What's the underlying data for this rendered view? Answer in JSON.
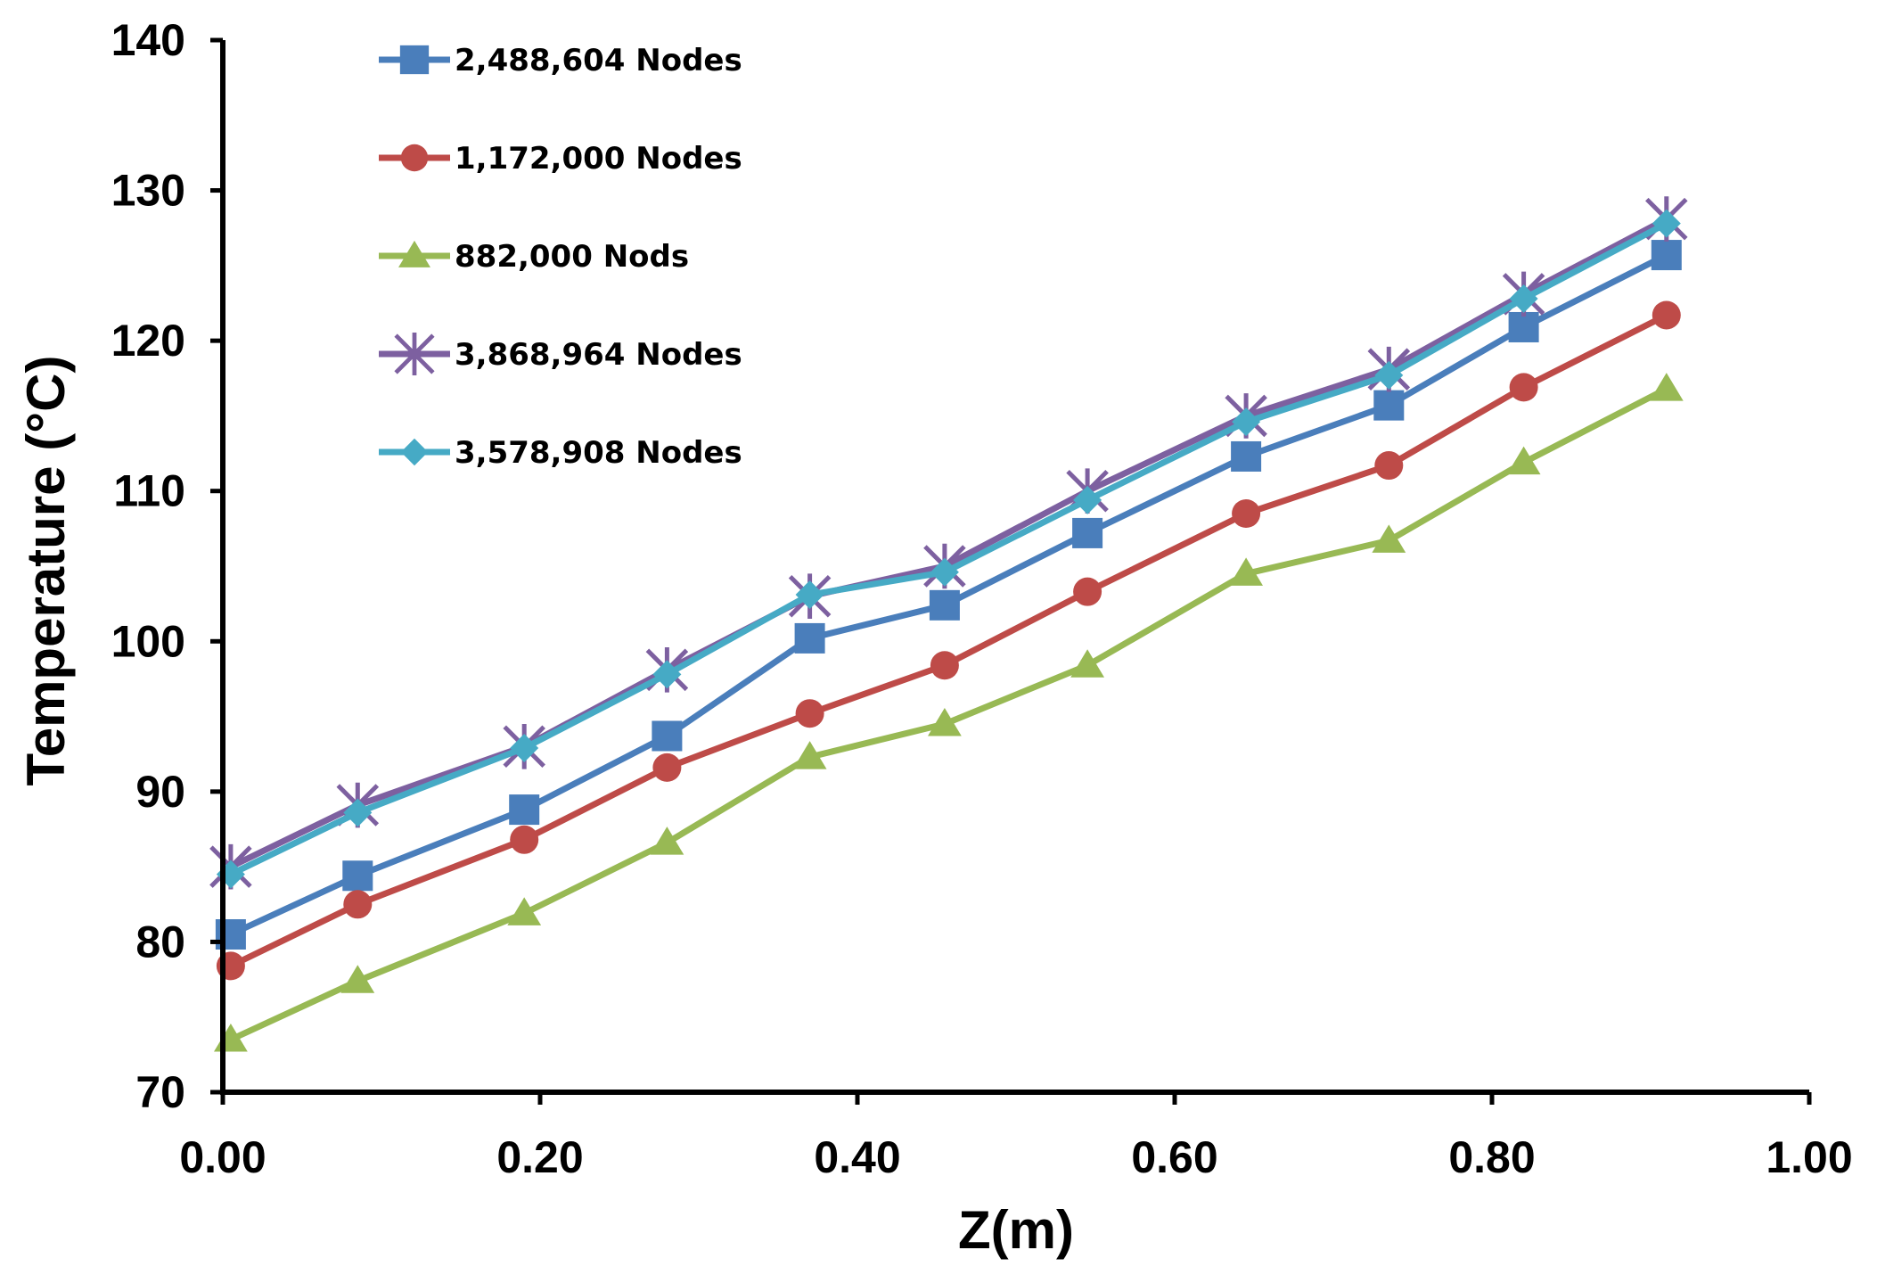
{
  "chart_data": {
    "type": "line",
    "title": "",
    "xlabel": "Z(m)",
    "ylabel": "Temperature (°C)",
    "xlim": [
      0,
      1
    ],
    "ylim": [
      70,
      140
    ],
    "xticks": [
      "0.00",
      "0.20",
      "0.40",
      "0.60",
      "0.80",
      "1.00"
    ],
    "yticks": [
      "70",
      "80",
      "90",
      "100",
      "110",
      "120",
      "130",
      "140"
    ],
    "grid": false,
    "legend_position": "top-left",
    "x": [
      0.005,
      0.085,
      0.19,
      0.28,
      0.37,
      0.455,
      0.545,
      0.645,
      0.735,
      0.82,
      0.91
    ],
    "series": [
      {
        "name": "2,488,604 Nodes",
        "marker": "square",
        "color": "#4A7EBB",
        "values": [
          80.5,
          84.4,
          88.8,
          93.7,
          100.2,
          102.4,
          107.2,
          112.3,
          115.7,
          120.9,
          125.7
        ]
      },
      {
        "name": "1,172,000 Nodes",
        "marker": "circle",
        "color": "#BE4B48",
        "values": [
          78.4,
          82.5,
          86.8,
          91.6,
          95.2,
          98.4,
          103.3,
          108.5,
          111.7,
          116.9,
          121.7
        ]
      },
      {
        "name": "882,000 Nods",
        "marker": "triangle",
        "color": "#98B954",
        "values": [
          73.5,
          77.4,
          81.9,
          86.6,
          92.3,
          94.5,
          98.4,
          104.5,
          106.7,
          111.9,
          116.8
        ]
      },
      {
        "name": "3,868,964 Nodes",
        "marker": "star",
        "color": "#7D60A0",
        "values": [
          85.0,
          89.1,
          93.0,
          98.1,
          103.0,
          105.0,
          110.0,
          115.0,
          118.1,
          123.1,
          128.1
        ]
      },
      {
        "name": "3,578,908 Nodes",
        "marker": "diamond",
        "color": "#46AAC5",
        "values": [
          84.5,
          88.6,
          92.9,
          97.8,
          103.1,
          104.6,
          109.4,
          114.6,
          117.7,
          122.8,
          127.8
        ]
      }
    ]
  }
}
